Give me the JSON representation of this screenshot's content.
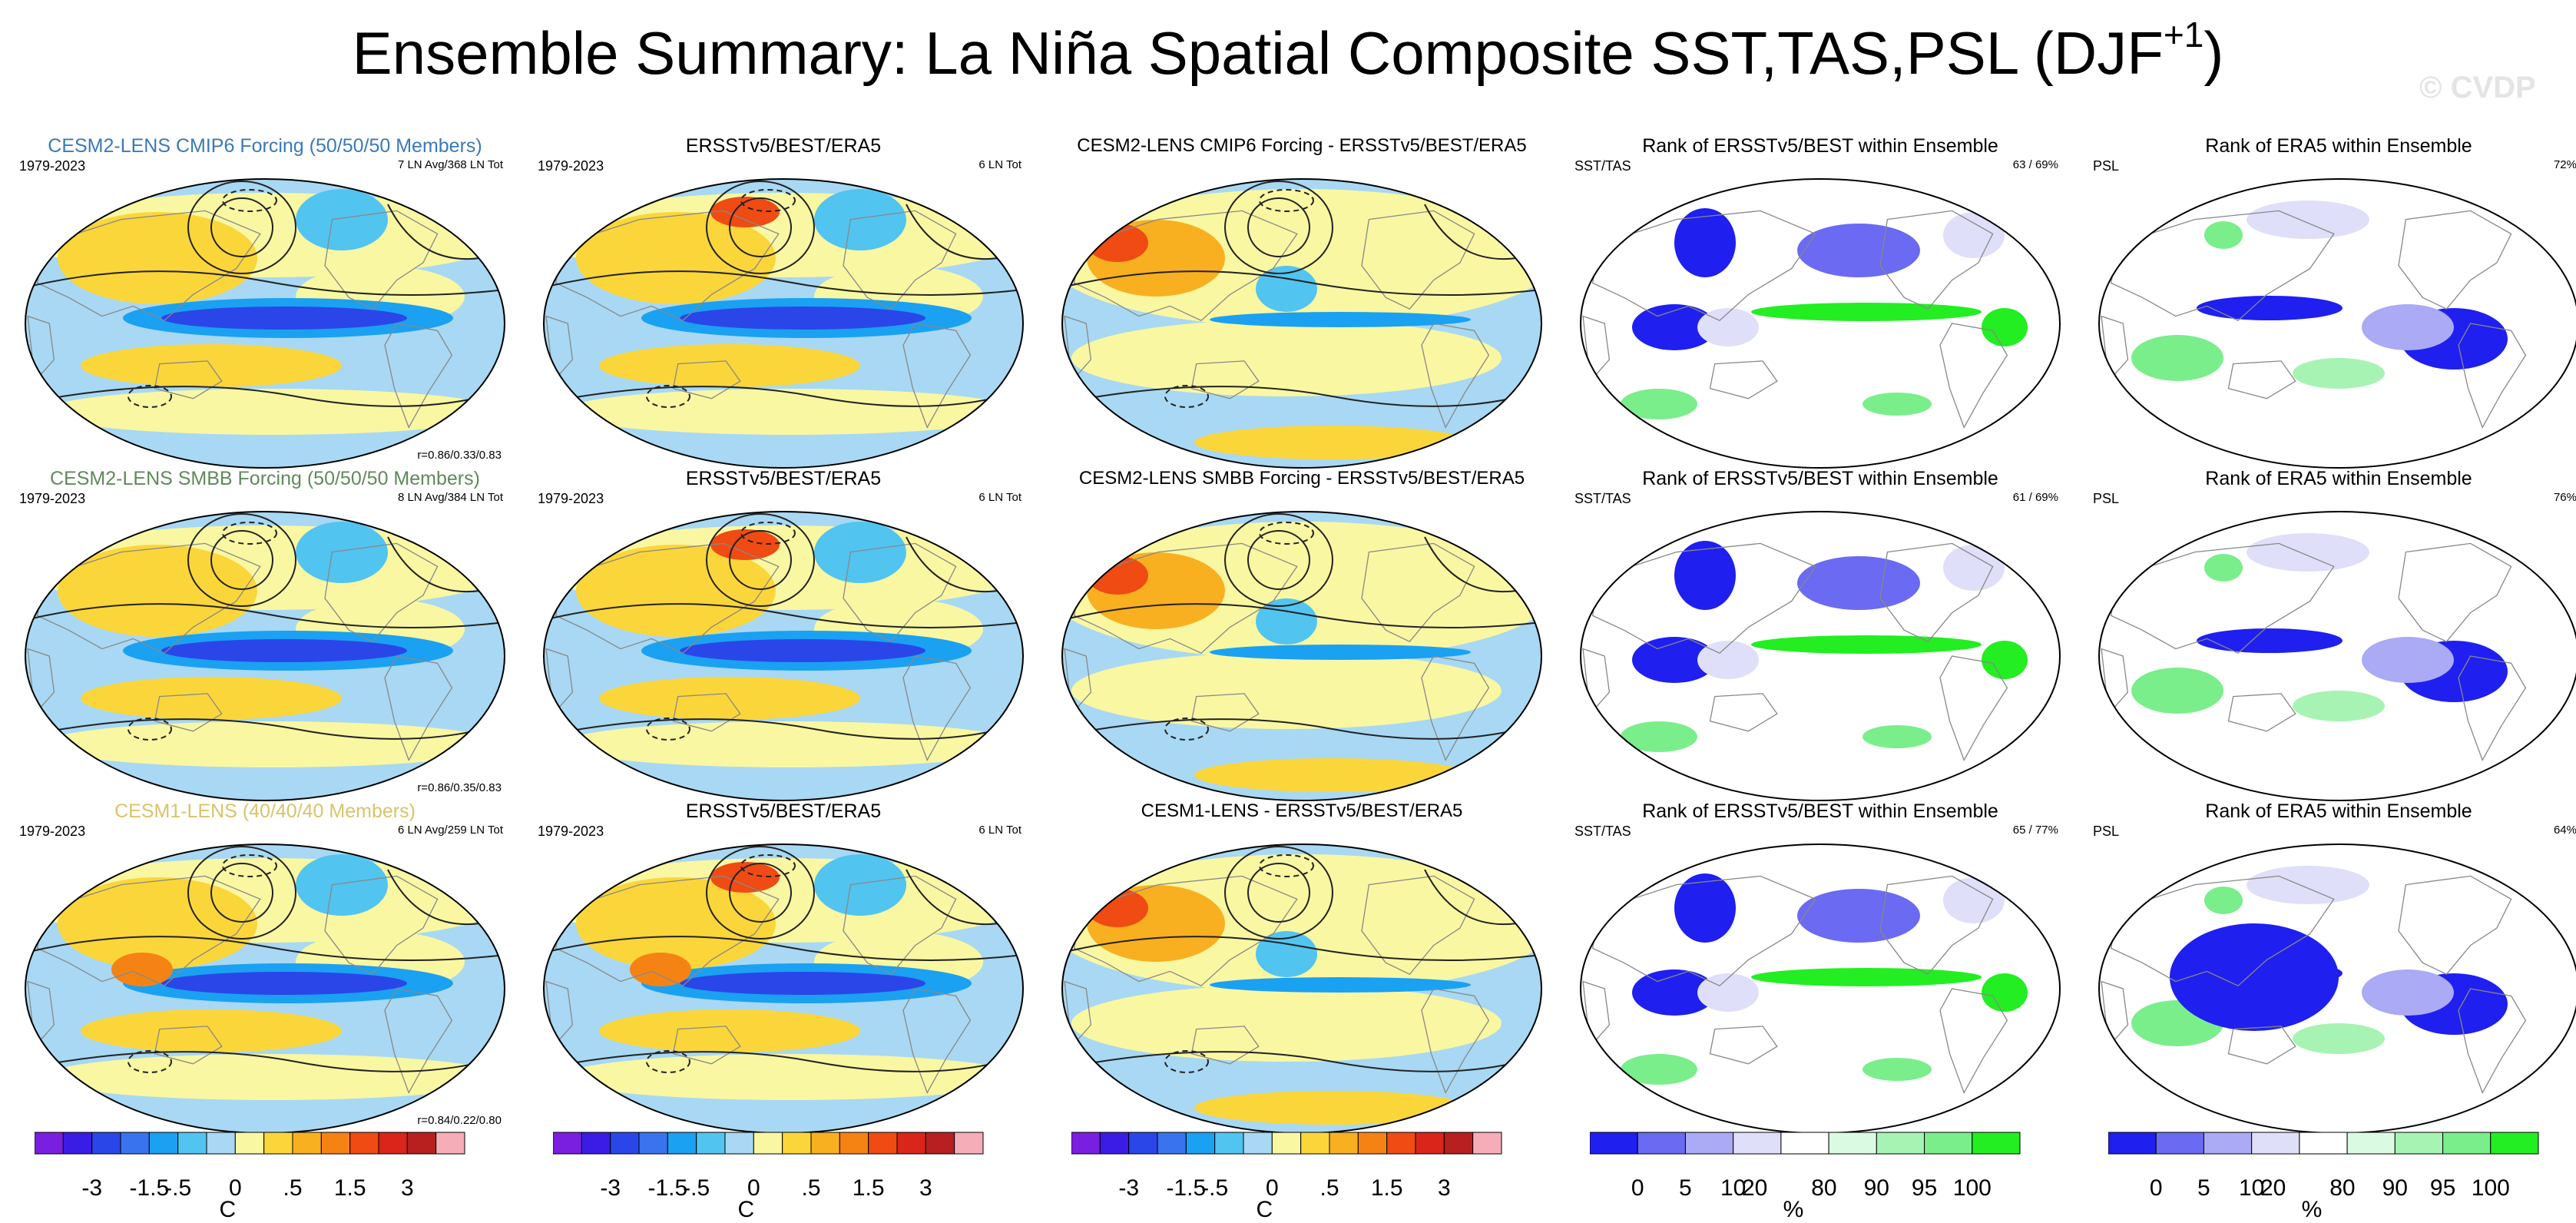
{
  "title": {
    "main": "Ensemble Summary: La Niña Spatial Composite SST,TAS,PSL (DJF",
    "sup": "+1",
    "end": ")"
  },
  "watermark": "© CVDP",
  "colors": {
    "temp_scale": [
      "#7a1ee0",
      "#3b1ce6",
      "#2a46e8",
      "#3a73ee",
      "#1aa1f2",
      "#52c4f0",
      "#a8d8f3",
      "#f9f7a2",
      "#fbd63a",
      "#f8b021",
      "#f58314",
      "#ef4b13",
      "#d9251a",
      "#b81f1f",
      "#f5aeb8"
    ],
    "rank_scale": [
      "#1f1ff0",
      "#6a6af2",
      "#aaaaf5",
      "#dfdff9",
      "#ffffff",
      "#dafbe1",
      "#a7f3b3",
      "#7aee8b",
      "#22ee22"
    ],
    "ocean_temp": "#a8d8f3",
    "ocean_rank": "#ffffff",
    "contour": "#222222",
    "coast": "#888888"
  },
  "rows": [
    {
      "model_title": "CESM2-LENS CMIP6 Forcing (50/50/50 Members)",
      "model_title_color": "#3a7ab8",
      "period": "1979-2023",
      "model_count": "7 LN Avg/368 LN Tot",
      "corr": "r=0.86/0.33/0.83",
      "obs_title": "ERSSTv5/BEST/ERA5",
      "obs_period": "1979-2023",
      "obs_count": "6 LN Tot",
      "diff_title": "CESM2-LENS CMIP6 Forcing - ERSSTv5/BEST/ERA5",
      "rank1_title": "Rank of ERSSTv5/BEST within Ensemble",
      "rank1_left": "SST/TAS",
      "rank1_right": "63 /  69%",
      "rank2_title": "Rank of ERA5 within Ensemble",
      "rank2_left": "PSL",
      "rank2_right": "72%"
    },
    {
      "model_title": "CESM2-LENS SMBB Forcing (50/50/50 Members)",
      "model_title_color": "#5f8a5a",
      "period": "1979-2023",
      "model_count": "8 LN Avg/384 LN Tot",
      "corr": "r=0.86/0.35/0.83",
      "obs_title": "ERSSTv5/BEST/ERA5",
      "obs_period": "1979-2023",
      "obs_count": "6 LN Tot",
      "diff_title": "CESM2-LENS SMBB Forcing - ERSSTv5/BEST/ERA5",
      "rank1_title": "Rank of ERSSTv5/BEST within Ensemble",
      "rank1_left": "SST/TAS",
      "rank1_right": "61 /  69%",
      "rank2_title": "Rank of ERA5 within Ensemble",
      "rank2_left": "PSL",
      "rank2_right": "76%"
    },
    {
      "model_title": "CESM1-LENS (40/40/40 Members)",
      "model_title_color": "#d8c46a",
      "period": "1979-2023",
      "model_count": "6 LN Avg/259 LN Tot",
      "corr": "r=0.84/0.22/0.80",
      "obs_title": "ERSSTv5/BEST/ERA5",
      "obs_period": "1979-2023",
      "obs_count": "6 LN Tot",
      "diff_title": "CESM1-LENS - ERSSTv5/BEST/ERA5",
      "rank1_title": "Rank of ERSSTv5/BEST within Ensemble",
      "rank1_left": "SST/TAS",
      "rank1_right": "65 /  77%",
      "rank2_title": "Rank of ERA5 within Ensemble",
      "rank2_left": "PSL",
      "rank2_right": "64%"
    }
  ],
  "chart_data": {
    "type": "heatmap",
    "title": "Ensemble Summary: La Niña Spatial Composite SST,TAS,PSL (DJF+1)",
    "panels_per_row": 5,
    "rows": 3,
    "temp_colorbar": {
      "tick_labels": [
        "-3",
        "-1.5",
        "-.5",
        "0",
        ".5",
        "1.5",
        "3"
      ],
      "tick_values": [
        -3,
        -1.5,
        -0.5,
        0,
        0.5,
        1.5,
        3
      ],
      "unit": "C"
    },
    "rank_colorbar": {
      "tick_labels": [
        "0",
        "5",
        "10",
        "20",
        "80",
        "90",
        "95",
        "100"
      ],
      "tick_values": [
        0,
        5,
        10,
        20,
        80,
        90,
        95,
        100
      ],
      "unit": "%"
    }
  }
}
